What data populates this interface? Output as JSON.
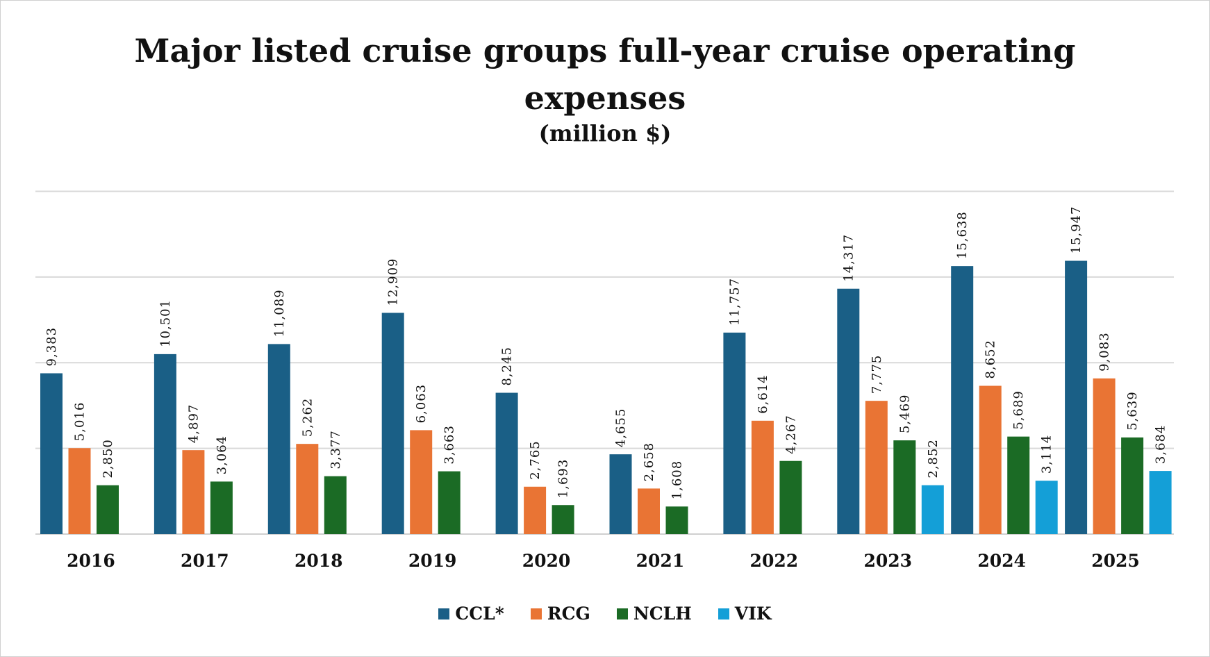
{
  "chart_data": {
    "type": "bar",
    "title": "Major listed cruise groups full-year cruise operating expenses",
    "subtitle": "(million $)",
    "xlabel": "",
    "ylabel": "",
    "ylim": [
      0,
      20000
    ],
    "y_gridlines": [
      0,
      5000,
      10000,
      15000,
      20000
    ],
    "y_tick_labels_shown": false,
    "grid": true,
    "legend_position": "bottom",
    "categories": [
      "2016",
      "2017",
      "2018",
      "2019",
      "2020",
      "2021",
      "2022",
      "2023",
      "2024",
      "2025"
    ],
    "series": [
      {
        "name": "CCL*",
        "color": "#1a5f86",
        "values": [
          9383,
          10501,
          11089,
          12909,
          8245,
          4655,
          11757,
          14317,
          15638,
          15947
        ],
        "labels": [
          "9,383",
          "10,501",
          "11,089",
          "12,909",
          "8,245",
          "4,655",
          "11,757",
          "14,317",
          "15,638",
          "15,947"
        ]
      },
      {
        "name": "RCG",
        "color": "#e97434",
        "values": [
          5016,
          4897,
          5262,
          6063,
          2765,
          2658,
          6614,
          7775,
          8652,
          9083
        ],
        "labels": [
          "5,016",
          "4,897",
          "5,262",
          "6,063",
          "2,765",
          "2,658",
          "6,614",
          "7,775",
          "8,652",
          "9,083"
        ]
      },
      {
        "name": "NCLH",
        "color": "#1b6b25",
        "values": [
          2850,
          3064,
          3377,
          3663,
          1693,
          1608,
          4267,
          5469,
          5689,
          5639
        ],
        "labels": [
          "2,850",
          "3,064",
          "3,377",
          "3,663",
          "1,693",
          "1,608",
          "4,267",
          "5,469",
          "5,689",
          "5,639"
        ]
      },
      {
        "name": "VIK",
        "color": "#149fd7",
        "values": [
          null,
          null,
          null,
          null,
          null,
          null,
          null,
          2852,
          3114,
          3684
        ],
        "labels": [
          null,
          null,
          null,
          null,
          null,
          null,
          null,
          "2,852",
          "3,114",
          "3,684"
        ]
      }
    ]
  }
}
